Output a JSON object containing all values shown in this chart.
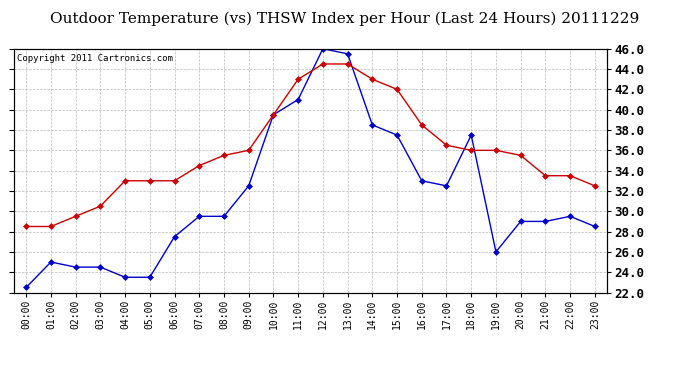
{
  "title": "Outdoor Temperature (vs) THSW Index per Hour (Last 24 Hours) 20111229",
  "copyright": "Copyright 2011 Cartronics.com",
  "x_labels": [
    "00:00",
    "01:00",
    "02:00",
    "03:00",
    "04:00",
    "05:00",
    "06:00",
    "07:00",
    "08:00",
    "09:00",
    "10:00",
    "11:00",
    "12:00",
    "13:00",
    "14:00",
    "15:00",
    "16:00",
    "17:00",
    "18:00",
    "19:00",
    "20:00",
    "21:00",
    "22:00",
    "23:00"
  ],
  "blue_data": [
    22.5,
    25.0,
    24.5,
    24.5,
    23.5,
    23.5,
    27.5,
    29.5,
    29.5,
    32.5,
    39.5,
    41.0,
    46.0,
    45.5,
    38.5,
    37.5,
    33.0,
    32.5,
    37.5,
    26.0,
    29.0,
    29.0,
    29.5,
    28.5
  ],
  "red_data": [
    28.5,
    28.5,
    29.5,
    30.5,
    33.0,
    33.0,
    33.0,
    34.5,
    35.5,
    36.0,
    39.5,
    43.0,
    44.5,
    44.5,
    43.0,
    42.0,
    38.5,
    36.5,
    36.0,
    36.0,
    35.5,
    33.5,
    33.5,
    32.5
  ],
  "ylim": [
    22.0,
    46.0
  ],
  "yticks": [
    22.0,
    24.0,
    26.0,
    28.0,
    30.0,
    32.0,
    34.0,
    36.0,
    38.0,
    40.0,
    42.0,
    44.0,
    46.0
  ],
  "blue_color": "#0000cc",
  "red_color": "#cc0000",
  "bg_color": "#ffffff",
  "grid_color": "#aaaaaa",
  "title_fontsize": 11,
  "tick_fontsize": 7,
  "ytick_fontsize": 9,
  "copyright_fontsize": 6.5
}
